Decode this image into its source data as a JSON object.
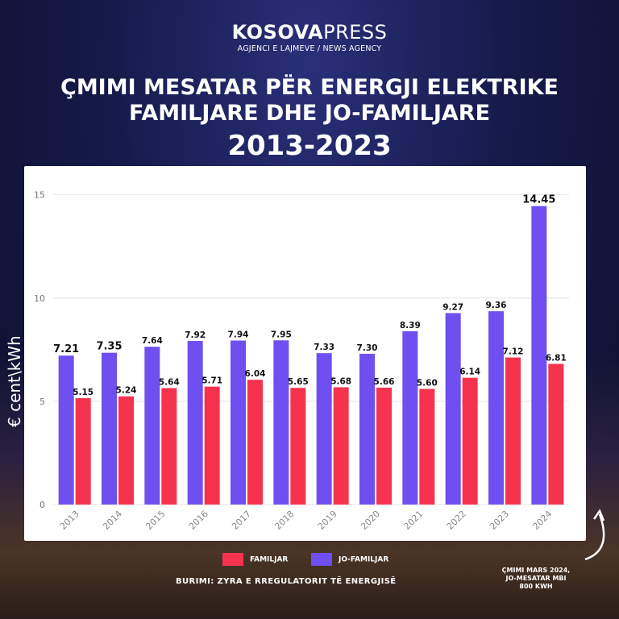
{
  "brand": {
    "name_bold": "KOSOVA",
    "name_light": "PRESS",
    "tagline": "AGJENCI E LAJMEVE / NEWS AGENCY"
  },
  "title": {
    "line1": "ÇMIMI MESATAR PËR ENERGJI ELEKTRIKE",
    "line2": "FAMILJARE DHE JO-FAMILJARE",
    "line3": "2013-2023"
  },
  "source": "BURIMI: ZYRA E RREGULATORIT TË ENERGJISË",
  "note": {
    "line1": "ÇMIMI MARS 2024,",
    "line2": "JO-MESATAR MBI",
    "line3": "800 KWH"
  },
  "colors": {
    "familjar": "#f5334f",
    "jo_familjar": "#6f4ff0"
  },
  "icons": {
    "arrow": "curved-arrow-icon"
  },
  "chart_data": {
    "type": "bar",
    "categories": [
      "2013",
      "2014",
      "2015",
      "2016",
      "2017",
      "2018",
      "2019",
      "2020",
      "2021",
      "2022",
      "2023",
      "2024"
    ],
    "series": [
      {
        "name": "JO-FAMILJAR",
        "values": [
          7.21,
          7.35,
          7.64,
          7.92,
          7.94,
          7.95,
          7.33,
          7.3,
          8.39,
          9.27,
          9.36,
          14.45
        ]
      },
      {
        "name": "FAMILJAR",
        "values": [
          5.15,
          5.24,
          5.64,
          5.71,
          6.04,
          5.65,
          5.68,
          5.66,
          5.6,
          6.14,
          7.12,
          6.81
        ]
      }
    ],
    "data_labels": {
      "JO-FAMILJAR": [
        "7.21",
        "7.35",
        "7.64",
        "7.92",
        "7.94",
        "7.95",
        "7.33",
        "7.30",
        "8.39",
        "9.27",
        "9.36",
        "14.45"
      ],
      "FAMILJAR": [
        "5.15",
        "5.24",
        "5.64",
        "5.71",
        "6.04",
        "5.65",
        "5.68",
        "5.66",
        "5.60",
        "6.14",
        "7.12",
        "6.81"
      ]
    },
    "ylabel": "€ cent\\kWh",
    "xlabel": "",
    "ylim": [
      0,
      16
    ],
    "yticks": [
      "0",
      "5",
      "10",
      "15"
    ],
    "grid": true,
    "legend": "bottom"
  }
}
